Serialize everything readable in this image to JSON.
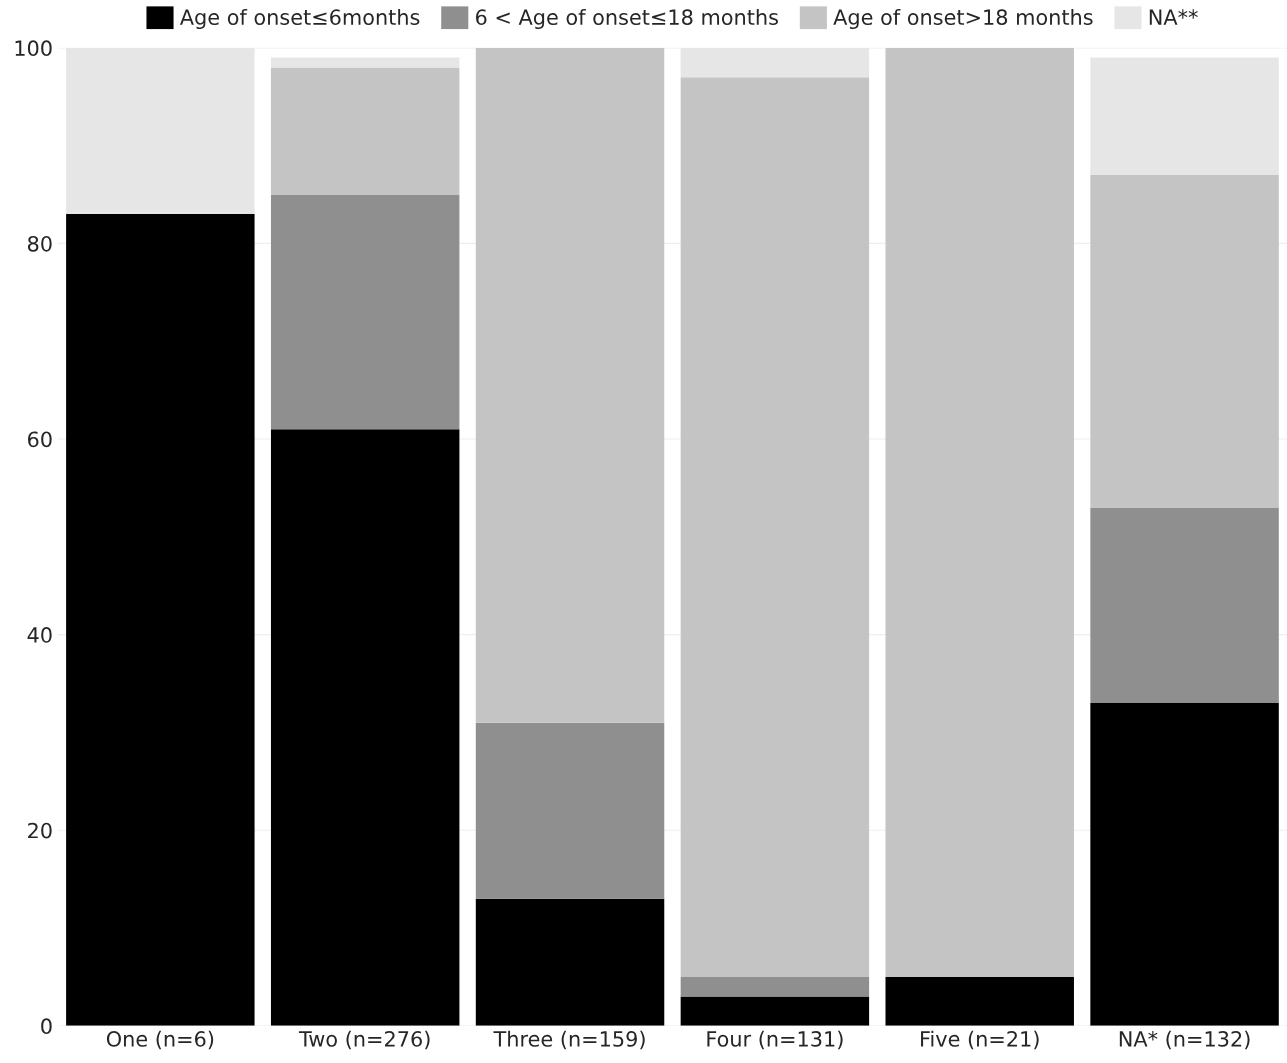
{
  "chart_data": {
    "type": "bar",
    "stacked": true,
    "categories": [
      "One (n=6)",
      "Two (n=276)",
      "Three (n=159)",
      "Four (n=131)",
      "Five (n=21)",
      "NA* (n=132)"
    ],
    "series": [
      {
        "name": "Age of onset≤6months",
        "color": "#000000",
        "values": [
          83,
          61,
          13,
          3,
          5,
          33
        ]
      },
      {
        "name": "6 < Age of onset≤18 months",
        "color": "#8f8f8f",
        "values": [
          0,
          24,
          18,
          2,
          0,
          20
        ]
      },
      {
        "name": "Age of onset>18 months",
        "color": "#c4c4c4",
        "values": [
          0,
          13,
          69,
          92,
          95,
          34
        ]
      },
      {
        "name": "NA**",
        "color": "#e6e6e6",
        "values": [
          17,
          1,
          0,
          3,
          0,
          12
        ]
      }
    ],
    "ylim": [
      0,
      100
    ],
    "yticks": [
      0,
      20,
      40,
      60,
      80,
      100
    ],
    "grid": "y",
    "legend": "top"
  }
}
